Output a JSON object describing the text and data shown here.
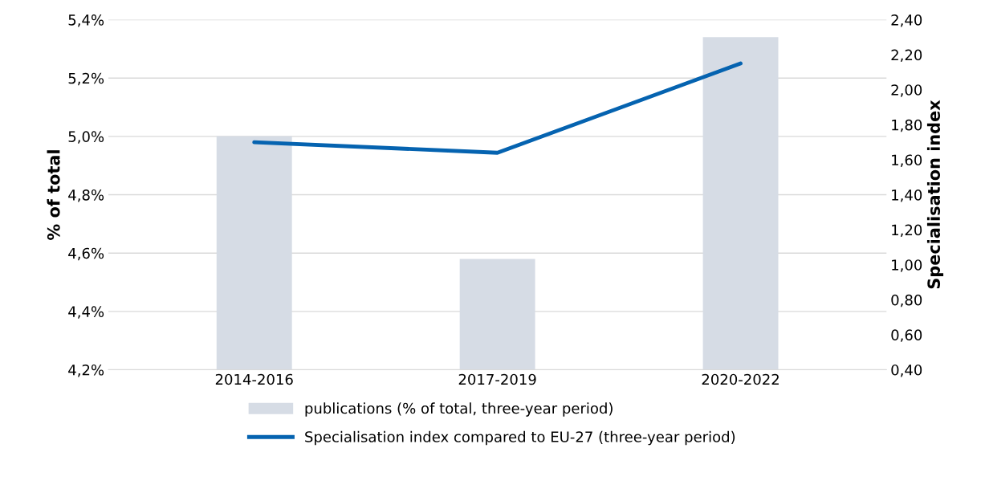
{
  "chart_data": {
    "type": "bar",
    "categories": [
      "2014-2016",
      "2017-2019",
      "2020-2022"
    ],
    "ylabel": "% of total",
    "y2label": "Specialisation index",
    "series": [
      {
        "name": "publications (% of total, three-year period)",
        "color": "#d6dce5",
        "values": [
          5.0,
          4.58,
          5.34
        ]
      },
      {
        "name": "Specialisation index compared to EU-27 (three-year period)",
        "type": "line",
        "axis": "y2",
        "color": "#0563b0",
        "values": [
          1.7,
          1.64,
          2.15
        ]
      }
    ],
    "ylim": [
      4.2,
      5.4
    ],
    "yticks": [
      {
        "value": 4.2,
        "label": "4,2%"
      },
      {
        "value": 4.4,
        "label": "4,4%"
      },
      {
        "value": 4.6,
        "label": "4,6%"
      },
      {
        "value": 4.8,
        "label": "4,8%"
      },
      {
        "value": 5.0,
        "label": "5,0%"
      },
      {
        "value": 5.2,
        "label": "5,2%"
      },
      {
        "value": 5.4,
        "label": "5,4%"
      }
    ],
    "y2lim": [
      0.4,
      2.4
    ],
    "y2ticks": [
      {
        "value": 0.4,
        "label": "0,40"
      },
      {
        "value": 0.6,
        "label": "0,60"
      },
      {
        "value": 0.8,
        "label": "0,80"
      },
      {
        "value": 1.0,
        "label": "1,00"
      },
      {
        "value": 1.2,
        "label": "1,20"
      },
      {
        "value": 1.4,
        "label": "1,40"
      },
      {
        "value": 1.6,
        "label": "1,60"
      },
      {
        "value": 1.8,
        "label": "1,80"
      },
      {
        "value": 2.0,
        "label": "2,00"
      },
      {
        "value": 2.2,
        "label": "2,20"
      },
      {
        "value": 2.4,
        "label": "2,40"
      }
    ],
    "grid": "y",
    "legend": "bottom",
    "marker": "none",
    "line_style": "solid"
  }
}
